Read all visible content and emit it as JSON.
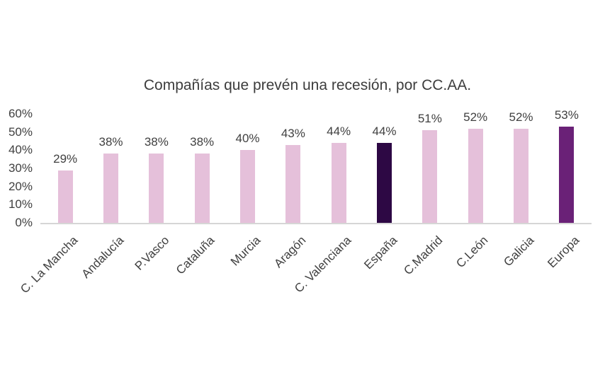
{
  "chart_data": {
    "type": "bar",
    "title": "Compañías que prevén una recesión, por CC.AA.",
    "categories": [
      "C. La Mancha",
      "Andalucía",
      "P.Vasco",
      "Cataluña",
      "Murcia",
      "Aragón",
      "C. Valenciana",
      "España",
      "C.Madrid",
      "C.León",
      "Galicia",
      "Europa"
    ],
    "values": [
      29,
      38,
      38,
      38,
      40,
      43,
      44,
      44,
      51,
      52,
      52,
      53
    ],
    "data_labels": [
      "29%",
      "38%",
      "38%",
      "38%",
      "40%",
      "43%",
      "44%",
      "44%",
      "51%",
      "52%",
      "52%",
      "53%"
    ],
    "xlabel": "",
    "ylabel": "",
    "ylim": [
      0,
      60
    ],
    "ytick_step": 10,
    "ytick_labels": [
      "0%",
      "10%",
      "20%",
      "30%",
      "40%",
      "50%",
      "60%"
    ],
    "grid": false,
    "legend": "none",
    "data_labels_shown": true,
    "colors": {
      "bar_default": "#e5c0da",
      "bar_espana": "#2d0844",
      "bar_europa": "#6a2177",
      "axis_line": "#d6d6d6",
      "tick_text": "#404040",
      "title_text": "#3d3d3d"
    },
    "bar_colors": [
      "#e5c0da",
      "#e5c0da",
      "#e5c0da",
      "#e5c0da",
      "#e5c0da",
      "#e5c0da",
      "#e5c0da",
      "#2d0844",
      "#e5c0da",
      "#e5c0da",
      "#e5c0da",
      "#6a2177"
    ]
  }
}
